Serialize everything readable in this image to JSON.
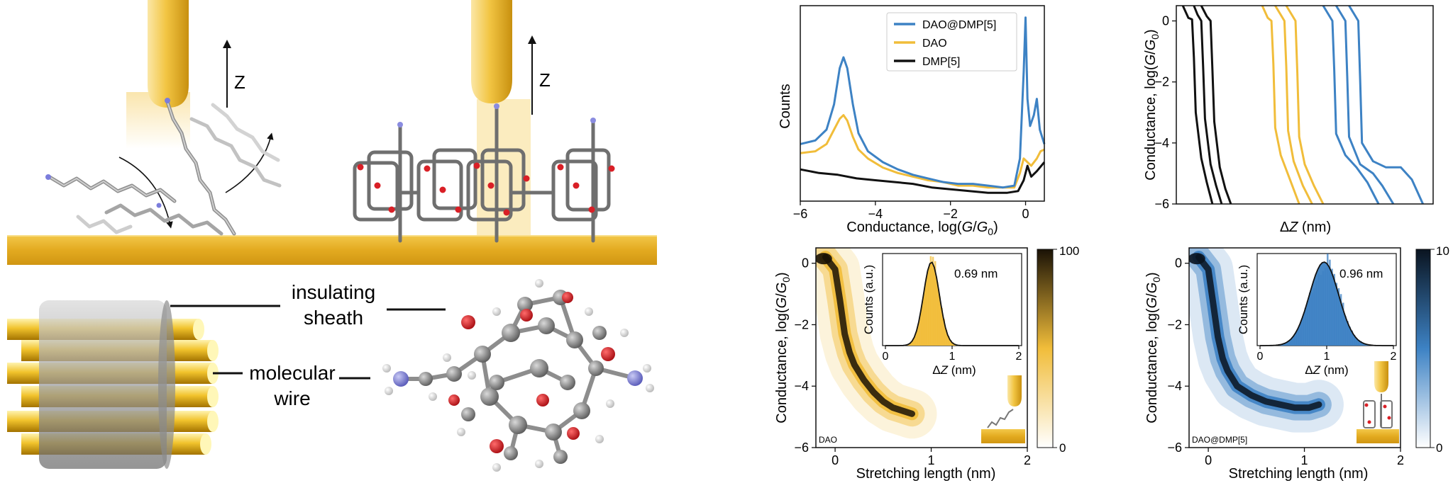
{
  "colors": {
    "blue": "#3d82c4",
    "yellow": "#f1bd3a",
    "black": "#111111",
    "gold_light": "#fbe7a6",
    "gold": "#e0a51c",
    "gold_dark": "#b9830a",
    "oxygen": "#d91f26",
    "nitrogen": "#8a8ce0",
    "carbon": "#7d7d7d",
    "hydrogen": "#e6e6e6"
  },
  "schematic": {
    "z_left": "Z",
    "z_right": "Z",
    "label_sheath_1": "insulating",
    "label_sheath_2": "sheath",
    "label_wire_1": "molecular",
    "label_wire_2": "wire"
  },
  "chart_data": [
    {
      "id": "histogram",
      "type": "line",
      "xlabel": "Conductance, log(G/G0)",
      "ylabel": "Counts",
      "xlim": [
        -6,
        0.5
      ],
      "x_ticks": [
        "−6",
        "−4",
        "−2",
        "0"
      ],
      "legend_position": "top-right",
      "series": [
        {
          "name": "DAO@DMP[5]",
          "color": "#3d82c4",
          "x": [
            -6,
            -5.6,
            -5.3,
            -5.1,
            -4.95,
            -4.85,
            -4.75,
            -4.6,
            -4.45,
            -4.2,
            -3.8,
            -3.4,
            -3.0,
            -2.6,
            -2.2,
            -1.8,
            -1.4,
            -1.0,
            -0.6,
            -0.3,
            -0.15,
            -0.05,
            0.0,
            0.05,
            0.12,
            0.22,
            0.3,
            0.38,
            0.5
          ],
          "y": [
            0.3,
            0.32,
            0.38,
            0.52,
            0.72,
            0.78,
            0.72,
            0.52,
            0.36,
            0.26,
            0.2,
            0.16,
            0.13,
            0.11,
            0.09,
            0.08,
            0.08,
            0.07,
            0.06,
            0.07,
            0.22,
            0.7,
            1.0,
            0.55,
            0.4,
            0.46,
            0.55,
            0.38,
            0.3
          ]
        },
        {
          "name": "DAO",
          "color": "#f1bd3a",
          "x": [
            -6,
            -5.6,
            -5.3,
            -5.1,
            -4.95,
            -4.85,
            -4.75,
            -4.6,
            -4.45,
            -4.2,
            -3.8,
            -3.4,
            -3.0,
            -2.6,
            -2.2,
            -1.8,
            -1.4,
            -1.0,
            -0.6,
            -0.3,
            -0.15,
            -0.05,
            0.05,
            0.15,
            0.3,
            0.4,
            0.5
          ],
          "y": [
            0.25,
            0.26,
            0.3,
            0.38,
            0.44,
            0.46,
            0.43,
            0.34,
            0.27,
            0.22,
            0.17,
            0.14,
            0.12,
            0.1,
            0.09,
            0.07,
            0.07,
            0.06,
            0.06,
            0.06,
            0.14,
            0.22,
            0.2,
            0.18,
            0.22,
            0.26,
            0.27
          ]
        },
        {
          "name": "DMP[5]",
          "color": "#111111",
          "x": [
            -6,
            -5.5,
            -5.0,
            -4.5,
            -4.0,
            -3.5,
            -3.0,
            -2.5,
            -2.0,
            -1.5,
            -1.0,
            -0.5,
            -0.2,
            -0.05,
            0.05,
            0.15,
            0.3,
            0.5
          ],
          "y": [
            0.16,
            0.14,
            0.13,
            0.11,
            0.1,
            0.09,
            0.08,
            0.06,
            0.05,
            0.04,
            0.03,
            0.03,
            0.04,
            0.1,
            0.18,
            0.12,
            0.15,
            0.2
          ]
        }
      ]
    },
    {
      "id": "traces",
      "type": "line",
      "xlabel": "ΔZ (nm)",
      "ylabel": "Conductance, log(G/G0)",
      "ylim": [
        -6,
        0.5
      ],
      "y_ticks": [
        "0",
        "−2",
        "−4",
        "−6"
      ],
      "series": [
        {
          "color": "#111111",
          "x": [
            0.02,
            0.05,
            0.07,
            0.08,
            0.09,
            0.12,
            0.15,
            0.18
          ],
          "y": [
            0.5,
            0.1,
            0.05,
            -1.2,
            -3.0,
            -4.5,
            -5.3,
            -6.0
          ]
        },
        {
          "color": "#111111",
          "x": [
            0.08,
            0.1,
            0.12,
            0.13,
            0.14,
            0.17,
            0.2,
            0.23
          ],
          "y": [
            0.5,
            0.2,
            0.0,
            -1.5,
            -3.2,
            -4.7,
            -5.4,
            -6.0
          ]
        },
        {
          "color": "#111111",
          "x": [
            0.12,
            0.15,
            0.17,
            0.18,
            0.19,
            0.22,
            0.25,
            0.28
          ],
          "y": [
            0.5,
            0.15,
            0.0,
            -1.6,
            -3.3,
            -4.8,
            -5.5,
            -6.0
          ]
        },
        {
          "color": "#f1bd3a",
          "x": [
            0.45,
            0.48,
            0.5,
            0.51,
            0.52,
            0.55,
            0.6,
            0.65
          ],
          "y": [
            0.5,
            0.1,
            0.0,
            -1.4,
            -3.5,
            -4.4,
            -5.2,
            -6.0
          ]
        },
        {
          "color": "#f1bd3a",
          "x": [
            0.52,
            0.55,
            0.57,
            0.58,
            0.59,
            0.62,
            0.67,
            0.72
          ],
          "y": [
            0.5,
            0.2,
            0.0,
            -1.5,
            -3.6,
            -4.6,
            -5.4,
            -6.0
          ]
        },
        {
          "color": "#f1bd3a",
          "x": [
            0.58,
            0.61,
            0.63,
            0.64,
            0.65,
            0.68,
            0.73,
            0.78
          ],
          "y": [
            0.5,
            0.2,
            0.0,
            -1.7,
            -3.8,
            -4.7,
            -5.4,
            -6.0
          ]
        },
        {
          "color": "#3d82c4",
          "x": [
            0.78,
            0.81,
            0.83,
            0.84,
            0.85,
            0.9,
            0.96,
            1.02,
            1.08
          ],
          "y": [
            0.5,
            0.2,
            0.0,
            -1.6,
            -3.7,
            -4.4,
            -4.8,
            -5.3,
            -6.0
          ]
        },
        {
          "color": "#3d82c4",
          "x": [
            0.85,
            0.88,
            0.9,
            0.91,
            0.92,
            0.98,
            1.05,
            1.1,
            1.16
          ],
          "y": [
            0.5,
            0.2,
            0.0,
            -1.8,
            -3.8,
            -4.7,
            -5.0,
            -5.4,
            -6.0
          ]
        },
        {
          "color": "#3d82c4",
          "x": [
            0.92,
            0.95,
            0.97,
            0.98,
            0.99,
            1.05,
            1.12,
            1.2,
            1.26,
            1.32
          ],
          "y": [
            0.5,
            0.2,
            0.0,
            -1.9,
            -4.0,
            -4.6,
            -4.8,
            -4.8,
            -5.2,
            -6.0
          ]
        }
      ]
    },
    {
      "id": "density_dao",
      "type": "heatmap",
      "xlabel": "Stretching length (nm)",
      "ylabel": "Conductance, log(G/G0)",
      "xlim": [
        -0.2,
        2
      ],
      "ylim": [
        -6,
        0.5
      ],
      "x_ticks": [
        "0",
        "1",
        "2"
      ],
      "y_ticks": [
        "0",
        "−2",
        "−4",
        "−6"
      ],
      "colorbar": {
        "min": "0",
        "max": "100",
        "colors": [
          "#ffffff",
          "#f1bd3a",
          "#1a1206"
        ]
      },
      "corner_label": "DAO",
      "ridge": {
        "x": [
          -0.1,
          0.0,
          0.05,
          0.1,
          0.15,
          0.2,
          0.3,
          0.4,
          0.5,
          0.6,
          0.7,
          0.8
        ],
        "y": [
          0.2,
          -0.2,
          -1.2,
          -2.3,
          -2.9,
          -3.3,
          -3.8,
          -4.2,
          -4.5,
          -4.7,
          -4.8,
          -4.9
        ]
      },
      "inset": {
        "type": "histogram",
        "xlabel": "ΔZ (nm)",
        "ylabel": "Counts (a.u.)",
        "xlim": [
          0,
          2
        ],
        "x_ticks": [
          "0",
          "1",
          "2"
        ],
        "fill_color": "#f1bd3a",
        "peak": 0.69,
        "width": 0.12,
        "annotation": "0.69 nm"
      }
    },
    {
      "id": "density_dao_dmp",
      "type": "heatmap",
      "xlabel": "Stretching length (nm)",
      "ylabel": "Conductance, log(G/G0)",
      "xlim": [
        -0.2,
        2
      ],
      "ylim": [
        -6,
        0.5
      ],
      "x_ticks": [
        "0",
        "1",
        "2"
      ],
      "y_ticks": [
        "0",
        "−2",
        "−4",
        "−6"
      ],
      "colorbar": {
        "min": "0",
        "max": "10",
        "colors": [
          "#ffffff",
          "#3d82c4",
          "#0a1420"
        ]
      },
      "corner_label": "DAO@DMP[5]",
      "ridge": {
        "x": [
          -0.1,
          0.0,
          0.05,
          0.1,
          0.15,
          0.2,
          0.3,
          0.45,
          0.6,
          0.75,
          0.9,
          1.05,
          1.15
        ],
        "y": [
          0.2,
          -0.2,
          -1.3,
          -2.4,
          -3.1,
          -3.5,
          -4.0,
          -4.3,
          -4.5,
          -4.6,
          -4.7,
          -4.7,
          -4.6
        ]
      },
      "inset": {
        "type": "histogram",
        "xlabel": "ΔZ (nm)",
        "ylabel": "Counts (a.u.)",
        "xlim": [
          0,
          2
        ],
        "x_ticks": [
          "0",
          "1",
          "2"
        ],
        "fill_color": "#3d82c4",
        "peak": 0.96,
        "width": 0.22,
        "annotation": "0.96 nm"
      }
    }
  ]
}
